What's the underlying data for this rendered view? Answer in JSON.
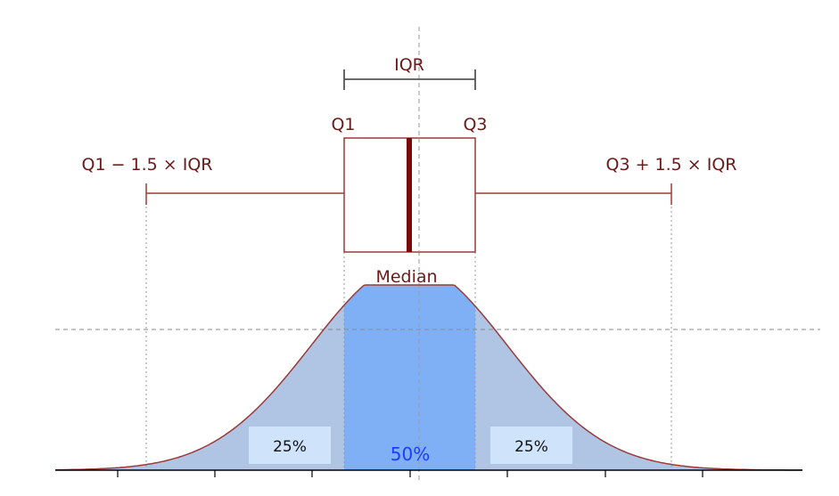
{
  "labels": {
    "iqr": "IQR",
    "q1": "Q1",
    "q3": "Q3",
    "lower_fence": "Q1 − 1.5 × IQR",
    "upper_fence": "Q3 + 1.5 × IQR",
    "median": "Median"
  },
  "areas": {
    "left": "25%",
    "middle": "50%",
    "right": "25%"
  },
  "colors": {
    "box_stroke": "#9b3a3a",
    "median_line": "#7a0a0a",
    "label_text": "#6b1a1a",
    "tail_fill": "#b0c4e4",
    "middle_fill": "#7fb0f5",
    "middle_percent_text": "#1e3cff",
    "percent_box_fill": "#cfe3fb",
    "guide_lines": "#9a9a9a"
  }
}
